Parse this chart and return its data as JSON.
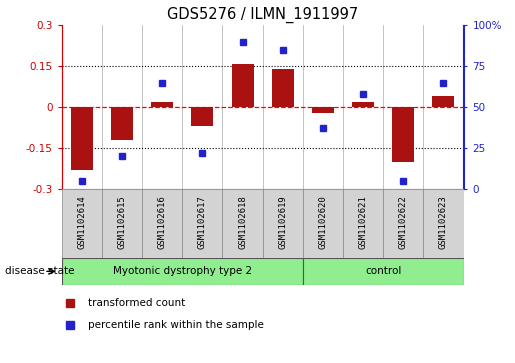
{
  "title": "GDS5276 / ILMN_1911997",
  "samples": [
    "GSM1102614",
    "GSM1102615",
    "GSM1102616",
    "GSM1102617",
    "GSM1102618",
    "GSM1102619",
    "GSM1102620",
    "GSM1102621",
    "GSM1102622",
    "GSM1102623"
  ],
  "red_bars": [
    -0.23,
    -0.12,
    0.02,
    -0.07,
    0.16,
    0.14,
    -0.02,
    0.02,
    -0.2,
    0.04
  ],
  "blue_dots": [
    5,
    20,
    65,
    22,
    90,
    85,
    37,
    58,
    5,
    65
  ],
  "ylim_left": [
    -0.3,
    0.3
  ],
  "ylim_right": [
    0,
    100
  ],
  "yticks_left": [
    -0.3,
    -0.15,
    0.0,
    0.15,
    0.3
  ],
  "yticks_right": [
    0,
    25,
    50,
    75,
    100
  ],
  "ytick_labels_left": [
    "-0.3",
    "-0.15",
    "0",
    "0.15",
    "0.3"
  ],
  "ytick_labels_right": [
    "0",
    "25",
    "50",
    "75",
    "100%"
  ],
  "hlines": [
    0.15,
    0.0,
    -0.15
  ],
  "hline_styles": [
    "dotted",
    "dashed",
    "dotted"
  ],
  "hline_colors": [
    "black",
    "red",
    "black"
  ],
  "bar_color": "#aa1111",
  "dot_color": "#2222cc",
  "group1_samples": 6,
  "group2_samples": 4,
  "group1_label": "Myotonic dystrophy type 2",
  "group2_label": "control",
  "group_color": "#90ee90",
  "label_box_color": "#d3d3d3",
  "disease_state_label": "disease state",
  "legend_red": "transformed count",
  "legend_blue": "percentile rank within the sample",
  "n_samples": 10
}
